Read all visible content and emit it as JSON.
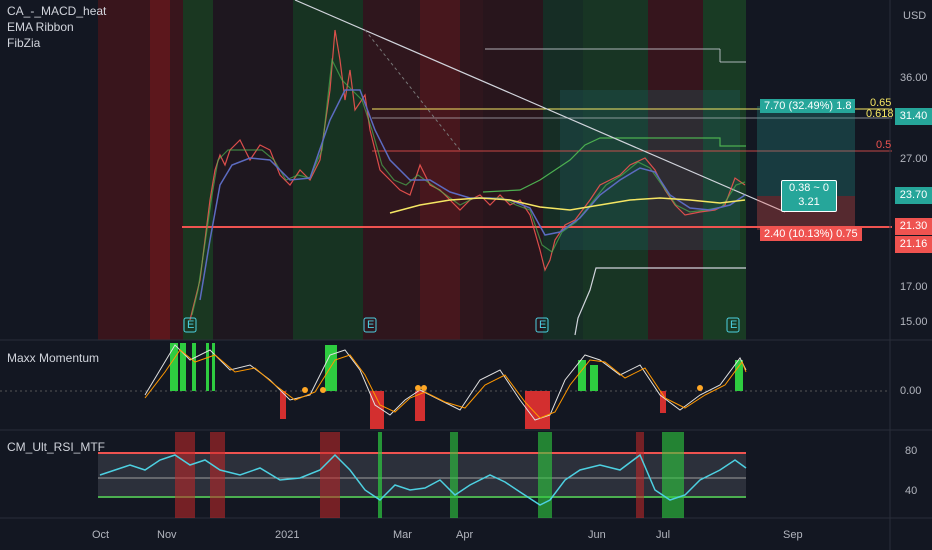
{
  "currency": "USD",
  "indicators": {
    "main": [
      "CA_-_MACD_heat",
      "EMA Ribbon",
      "FibZia"
    ],
    "pane2": "Maxx Momentum",
    "pane3": "CM_Ult_RSI_MTF"
  },
  "price_axis": [
    "36.00",
    "31.40",
    "27.00",
    "23.70",
    "21.30",
    "21.16",
    "17.00",
    "15.00"
  ],
  "momentum_axis": [
    "0.00"
  ],
  "rsi_axis": [
    "80",
    "40"
  ],
  "time_axis": [
    "Oct",
    "Nov",
    "2021",
    "Mar",
    "Apr",
    "Jun",
    "Jul",
    "Sep"
  ],
  "fib_labels": [
    "0.65",
    "0.618",
    "0.5"
  ],
  "annotations": {
    "target_box": "7.70 (32.49%) 1.8",
    "stop_box": "2.40 (10.13%) 0.75",
    "ratio_line1": "0.38 ~ 0",
    "ratio_line2": "3.21"
  },
  "earnings_marker": "E",
  "colors": {
    "bg": "#131722",
    "green": "#26a69a",
    "red": "#ef5350",
    "yellow": "#f5e663",
    "rsi": "#4dd0e1"
  }
}
